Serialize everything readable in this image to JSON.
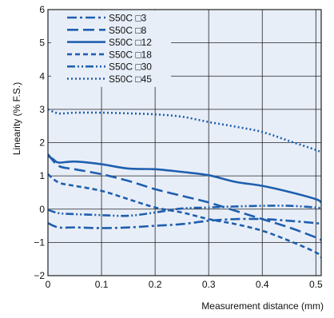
{
  "chart_data": {
    "type": "line",
    "xlabel": "Measurement distance (mm)",
    "ylabel": "Linearity (% F.S.)",
    "xlim": [
      0,
      0.51
    ],
    "ylim": [
      -2,
      6
    ],
    "x_ticks": [
      "0",
      "0.1",
      "0.2",
      "0.3",
      "0.4",
      "0.5"
    ],
    "x_tick_values": [
      0,
      0.1,
      0.2,
      0.3,
      0.4,
      0.5
    ],
    "y_ticks": [
      "−2",
      "−1",
      "0",
      "1",
      "2",
      "3",
      "4",
      "5",
      "6"
    ],
    "y_tick_values": [
      -2,
      -1,
      0,
      1,
      2,
      3,
      4,
      5,
      6
    ],
    "grid": true,
    "legend_position": "top-left",
    "series": [
      {
        "name": "S50C □3",
        "style": "dash-dot",
        "color": "#1f5fae",
        "x": [
          0,
          0.02,
          0.05,
          0.1,
          0.15,
          0.2,
          0.25,
          0.3,
          0.35,
          0.4,
          0.45,
          0.5,
          0.51
        ],
        "values": [
          -0.42,
          -0.55,
          -0.55,
          -0.57,
          -0.55,
          -0.5,
          -0.45,
          -0.35,
          -0.3,
          -0.3,
          -0.35,
          -0.42,
          -0.45
        ]
      },
      {
        "name": "S50C □8",
        "style": "dash",
        "color": "#1f5fae",
        "x": [
          0,
          0.02,
          0.05,
          0.1,
          0.15,
          0.2,
          0.25,
          0.3,
          0.35,
          0.4,
          0.45,
          0.5,
          0.51
        ],
        "values": [
          1.65,
          1.3,
          1.2,
          1.05,
          0.85,
          0.6,
          0.4,
          0.2,
          -0.05,
          -0.3,
          -0.55,
          -0.85,
          -0.93
        ]
      },
      {
        "name": "S50C □12",
        "style": "solid",
        "color": "#1f5fae",
        "x": [
          0,
          0.01,
          0.02,
          0.05,
          0.1,
          0.15,
          0.2,
          0.25,
          0.3,
          0.35,
          0.4,
          0.45,
          0.5,
          0.51
        ],
        "values": [
          1.6,
          1.5,
          1.4,
          1.43,
          1.35,
          1.22,
          1.2,
          1.12,
          1.02,
          0.82,
          0.7,
          0.52,
          0.3,
          0.2
        ]
      },
      {
        "name": "S50C □18",
        "style": "short-dash",
        "color": "#1f5fae",
        "x": [
          0,
          0.02,
          0.05,
          0.1,
          0.15,
          0.2,
          0.25,
          0.3,
          0.35,
          0.4,
          0.45,
          0.5,
          0.51
        ],
        "values": [
          1.05,
          0.8,
          0.7,
          0.55,
          0.3,
          0.05,
          -0.1,
          -0.3,
          -0.45,
          -0.65,
          -0.95,
          -1.3,
          -1.45
        ]
      },
      {
        "name": "S50C □30",
        "style": "dash-dot-dot",
        "color": "#1f5fae",
        "x": [
          0,
          0.02,
          0.05,
          0.1,
          0.15,
          0.2,
          0.25,
          0.3,
          0.35,
          0.4,
          0.45,
          0.5,
          0.51
        ],
        "values": [
          -0.02,
          -0.12,
          -0.15,
          -0.18,
          -0.2,
          -0.1,
          0.02,
          0.05,
          0.08,
          0.1,
          0.1,
          0.05,
          0.02
        ]
      },
      {
        "name": "S50C □45",
        "style": "dotted",
        "color": "#1f5fae",
        "x": [
          0,
          0.02,
          0.05,
          0.1,
          0.15,
          0.2,
          0.25,
          0.3,
          0.35,
          0.4,
          0.45,
          0.5,
          0.51
        ],
        "values": [
          3.0,
          2.88,
          2.9,
          2.9,
          2.88,
          2.85,
          2.78,
          2.62,
          2.48,
          2.32,
          2.05,
          1.78,
          1.7
        ]
      }
    ]
  },
  "colors": {
    "plot_background": "#e8eef8",
    "grid": "#222222",
    "line": "#1f5fae"
  }
}
